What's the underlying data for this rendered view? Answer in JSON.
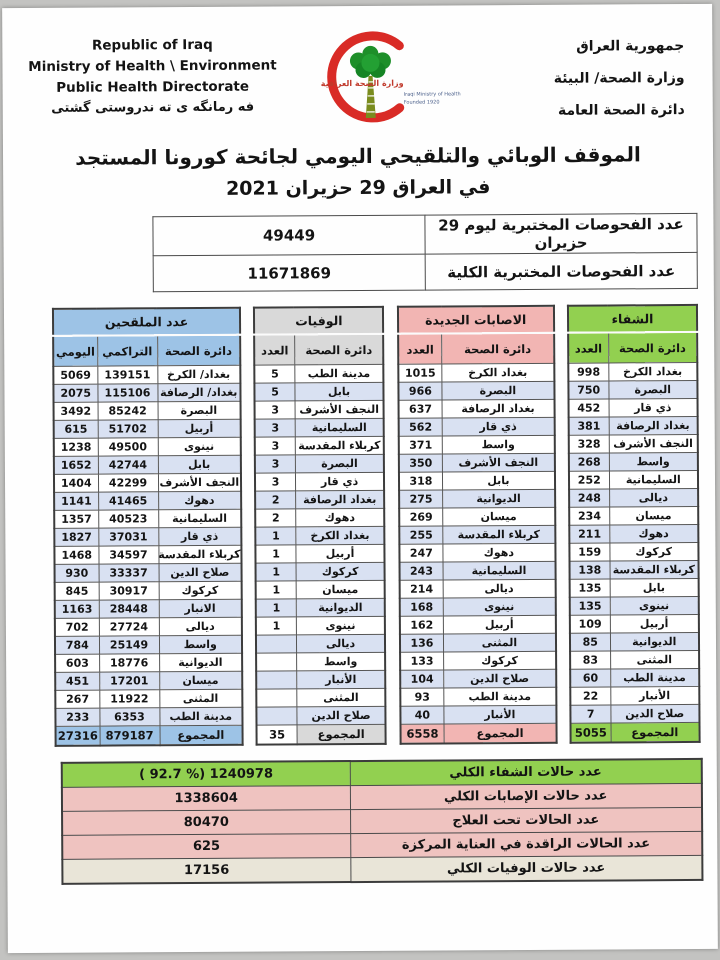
{
  "header": {
    "english_lines": [
      "Republic of Iraq",
      "Ministry of Health \\ Environment",
      "Public Health Directorate"
    ],
    "kurdish_line": "فه رمانگه ی ته ندروستی گشتی",
    "arabic_lines": [
      "جمهورية العراق",
      "وزارة الصحة/ البيئة",
      "دائرة الصحة العامة"
    ],
    "logo": {
      "caption_ar": "وزارة الصحة العراقية",
      "caption_en": "Iraqi Ministry of Health",
      "founded": "Founded 1920"
    }
  },
  "title": {
    "line1": "الموقف الوبائي والتلقيحي اليومي لجائحة كورونا المستجد",
    "line2": "في العراق 29  حزيران 2021"
  },
  "tests": {
    "rows": [
      {
        "label": "عدد الفحوصات المختبرية  ليوم 29 حزيران",
        "value": "49449"
      },
      {
        "label": "عدد الفحوصات المختبرية الكلية",
        "value": "11671869"
      }
    ]
  },
  "colors": {
    "accent_green": "#92D050",
    "accent_pink": "#F2B5B3",
    "accent_gray": "#D9D9D9",
    "accent_blue": "#9DC3E6",
    "row_stripe": "#D9E1F2",
    "summary_pink": "#EFC3C0",
    "summary_tan": "#E9E5D8",
    "crescent_red": "#D92B26",
    "tree_green": "#1E8F2A"
  },
  "province_tables": [
    {
      "id": "recovery",
      "title": "الشفاء",
      "color": "#92D050",
      "columns": [
        "دائرة الصحة",
        "العدد"
      ],
      "rows": [
        [
          "بغداد الكرخ",
          "998"
        ],
        [
          "البصرة",
          "750"
        ],
        [
          "ذي قار",
          "452"
        ],
        [
          "بغداد الرصافة",
          "381"
        ],
        [
          "النجف الأشرف",
          "328"
        ],
        [
          "واسط",
          "268"
        ],
        [
          "السليمانية",
          "252"
        ],
        [
          "ديالى",
          "248"
        ],
        [
          "ميسان",
          "234"
        ],
        [
          "دهوك",
          "211"
        ],
        [
          "كركوك",
          "159"
        ],
        [
          "كربلاء المقدسة",
          "138"
        ],
        [
          "بابل",
          "135"
        ],
        [
          "نينوى",
          "135"
        ],
        [
          "أربيل",
          "109"
        ],
        [
          "الديوانية",
          "85"
        ],
        [
          "المثنى",
          "83"
        ],
        [
          "مدينة الطب",
          "60"
        ],
        [
          "الأنبار",
          "22"
        ],
        [
          "صلاح الدين",
          "7"
        ]
      ],
      "total": [
        "المجموع",
        "5055"
      ]
    },
    {
      "id": "new-cases",
      "title": "الاصابات الجديدة",
      "color": "#F2B5B3",
      "columns": [
        "دائرة الصحة",
        "العدد"
      ],
      "rows": [
        [
          "بغداد الكرخ",
          "1015"
        ],
        [
          "البصرة",
          "966"
        ],
        [
          "بغداد الرصافة",
          "637"
        ],
        [
          "ذي قار",
          "562"
        ],
        [
          "واسط",
          "371"
        ],
        [
          "النجف الأشرف",
          "350"
        ],
        [
          "بابل",
          "318"
        ],
        [
          "الديوانية",
          "275"
        ],
        [
          "ميسان",
          "269"
        ],
        [
          "كربلاء المقدسة",
          "255"
        ],
        [
          "دهوك",
          "247"
        ],
        [
          "السليمانية",
          "243"
        ],
        [
          "ديالى",
          "214"
        ],
        [
          "نينوى",
          "168"
        ],
        [
          "أربيل",
          "162"
        ],
        [
          "المثنى",
          "136"
        ],
        [
          "كركوك",
          "133"
        ],
        [
          "صلاح الدين",
          "104"
        ],
        [
          "مدينة الطب",
          "93"
        ],
        [
          "الأنبار",
          "40"
        ]
      ],
      "total": [
        "المجموع",
        "6558"
      ]
    },
    {
      "id": "deaths",
      "title": "الوفيات",
      "color": "#D9D9D9",
      "columns": [
        "دائرة الصحة",
        "العدد"
      ],
      "rows": [
        [
          "مدينة الطب",
          "5"
        ],
        [
          "بابل",
          "5"
        ],
        [
          "النجف الأشرف",
          "3"
        ],
        [
          "السليمانية",
          "3"
        ],
        [
          "كربلاء المقدسة",
          "3"
        ],
        [
          "البصرة",
          "3"
        ],
        [
          "ذي قار",
          "3"
        ],
        [
          "بغداد الرصافة",
          "2"
        ],
        [
          "دهوك",
          "2"
        ],
        [
          "بغداد الكرخ",
          "1"
        ],
        [
          "أربيل",
          "1"
        ],
        [
          "كركوك",
          "1"
        ],
        [
          "ميسان",
          "1"
        ],
        [
          "الديوانية",
          "1"
        ],
        [
          "نينوى",
          "1"
        ],
        [
          "ديالى",
          ""
        ],
        [
          "واسط",
          ""
        ],
        [
          "الأنبار",
          ""
        ],
        [
          "المثنى",
          ""
        ],
        [
          "صلاح الدين",
          ""
        ]
      ],
      "total": [
        "المجموع",
        "35"
      ]
    },
    {
      "id": "vaccinated",
      "title": "عدد الملقحين",
      "color": "#9DC3E6",
      "columns": [
        "دائرة الصحة",
        "التراكمي",
        "اليومي"
      ],
      "rows": [
        [
          "بغداد/ الكرخ",
          "139151",
          "5069"
        ],
        [
          "بغداد/ الرصافة",
          "115106",
          "2075"
        ],
        [
          "البصرة",
          "85242",
          "3492"
        ],
        [
          "أربيل",
          "51702",
          "615"
        ],
        [
          "نينوى",
          "49500",
          "1238"
        ],
        [
          "بابل",
          "42744",
          "1652"
        ],
        [
          "النجف الأشرف",
          "42299",
          "1404"
        ],
        [
          "دهوك",
          "41465",
          "1141"
        ],
        [
          "السليمانية",
          "40523",
          "1357"
        ],
        [
          "ذي قار",
          "37031",
          "1827"
        ],
        [
          "كربلاء المقدسة",
          "34597",
          "1468"
        ],
        [
          "صلاح الدين",
          "33337",
          "930"
        ],
        [
          "كركوك",
          "30917",
          "845"
        ],
        [
          "الانبار",
          "28448",
          "1163"
        ],
        [
          "ديالى",
          "27724",
          "702"
        ],
        [
          "واسط",
          "25149",
          "784"
        ],
        [
          "الديوانية",
          "18776",
          "603"
        ],
        [
          "ميسان",
          "17201",
          "451"
        ],
        [
          "المثنى",
          "11922",
          "267"
        ],
        [
          "مدينة الطب",
          "6353",
          "233"
        ]
      ],
      "total": [
        "المجموع",
        "879187",
        "27316"
      ]
    }
  ],
  "summary": {
    "rows": [
      {
        "label": "عدد حالات الشفاء الكلي",
        "value": "1240978",
        "percent": "( 92.7 %)",
        "tone": "green"
      },
      {
        "label": "عدد حالات الإصابات الكلي",
        "value": "1338604",
        "tone": "pink"
      },
      {
        "label": "عدد الحالات تحت العلاج",
        "value": "80470",
        "tone": "pink"
      },
      {
        "label": "عدد الحالات الراقدة في العناية المركزة",
        "value": "625",
        "tone": "pink"
      },
      {
        "label": "عدد حالات الوفيات الكلي",
        "value": "17156",
        "tone": "tan"
      }
    ]
  }
}
